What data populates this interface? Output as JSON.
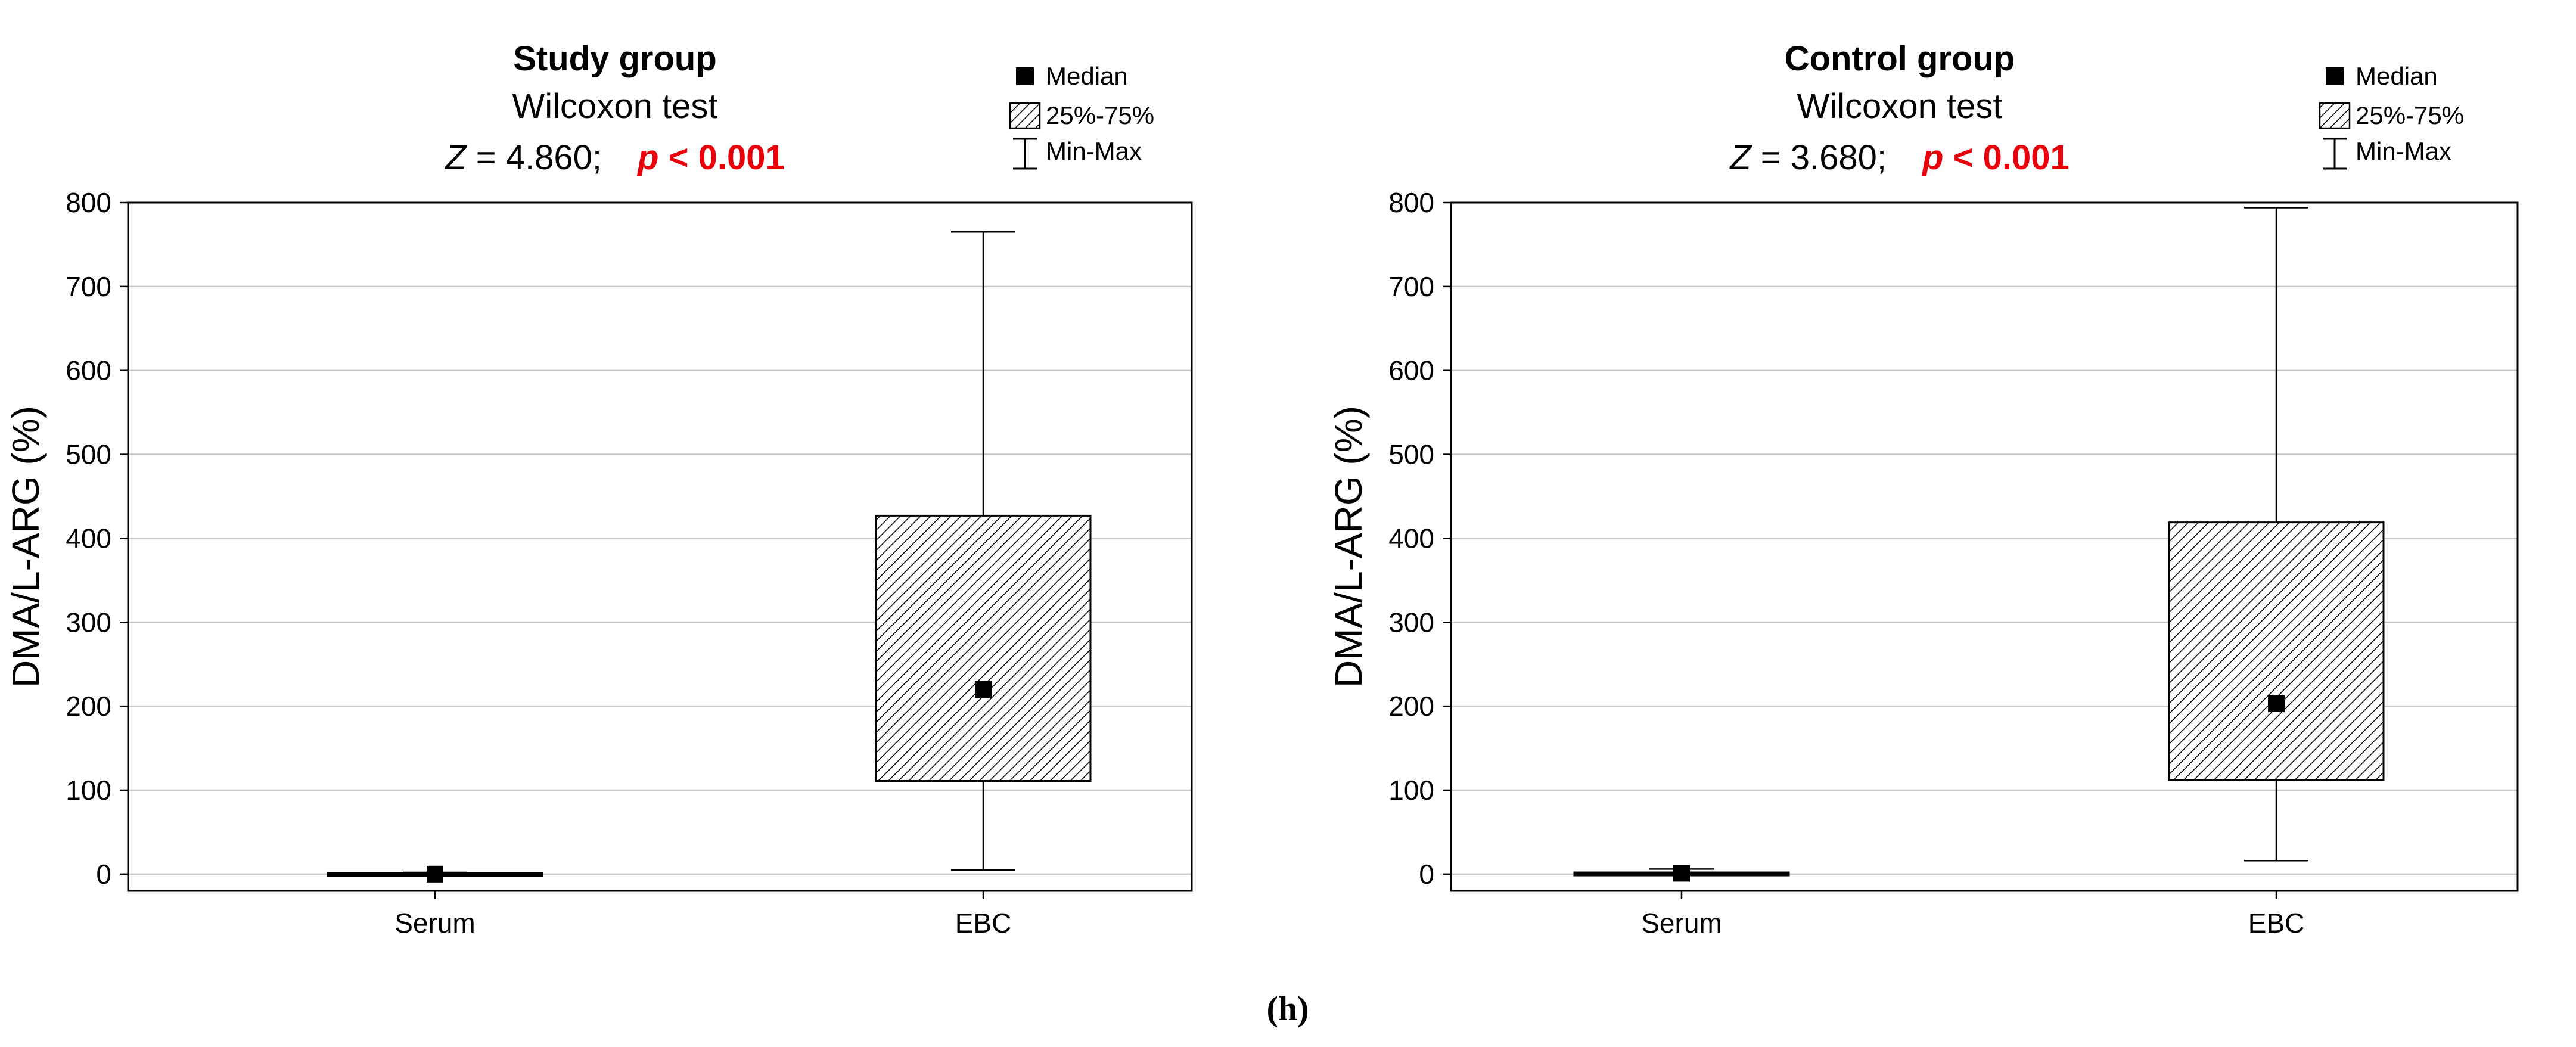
{
  "panel_label": "(h)",
  "colors": {
    "pvalue": "#e8000b",
    "ink": "#000000",
    "grid": "#c8c8c8"
  },
  "chart_data": [
    {
      "type": "box",
      "title": "Study group",
      "subtitle": "Wilcoxon test",
      "stat_text": "Z = 4.860;",
      "stat_symbol": "Z",
      "stat_rest": " = 4.860;",
      "p_symbol": "p",
      "p_rest": " < 0.001",
      "ylabel": "DMA/L-ARG (%)",
      "ylim": [
        -20,
        800
      ],
      "yticks": [
        0,
        100,
        200,
        300,
        400,
        500,
        600,
        700,
        800
      ],
      "grid": true,
      "legend": {
        "position": "top-right",
        "median": "Median",
        "box": "25%-75%",
        "whisker": "Min-Max"
      },
      "categories": [
        "Serum",
        "EBC"
      ],
      "boxes": [
        {
          "category": "Serum",
          "min": -2,
          "q1": -2,
          "median": 0,
          "q3": 1,
          "max": 2
        },
        {
          "category": "EBC",
          "min": 5,
          "q1": 111,
          "median": 220,
          "q3": 427,
          "max": 765
        }
      ]
    },
    {
      "type": "box",
      "title": "Control group",
      "subtitle": "Wilcoxon test",
      "stat_text": "Z = 3.680;",
      "stat_symbol": "Z",
      "stat_rest": " = 3.680;",
      "p_symbol": "p",
      "p_rest": " < 0.001",
      "ylabel": "DMA/L-ARG (%)",
      "ylim": [
        -20,
        800
      ],
      "yticks": [
        0,
        100,
        200,
        300,
        400,
        500,
        600,
        700,
        800
      ],
      "grid": true,
      "legend": {
        "position": "top-right",
        "median": "Median",
        "box": "25%-75%",
        "whisker": "Min-Max"
      },
      "categories": [
        "Serum",
        "EBC"
      ],
      "boxes": [
        {
          "category": "Serum",
          "min": -1,
          "q1": -1,
          "median": 1,
          "q3": 2,
          "max": 6
        },
        {
          "category": "EBC",
          "min": 16,
          "q1": 112,
          "median": 203,
          "q3": 419,
          "max": 794
        }
      ]
    }
  ]
}
